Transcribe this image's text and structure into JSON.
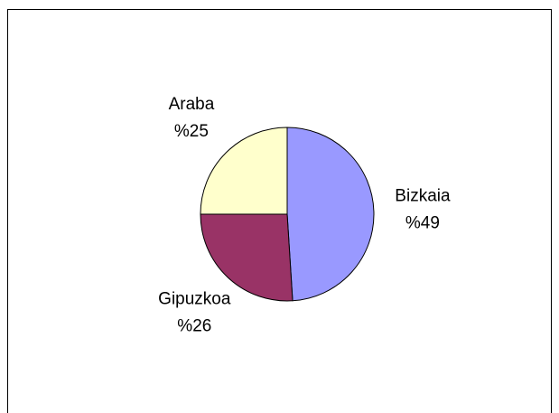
{
  "chart_data": {
    "type": "pie",
    "categories": [
      "Bizkaia",
      "Gipuzkoa",
      "Araba"
    ],
    "values": [
      49,
      26,
      25
    ],
    "value_labels": [
      "%49",
      "%26",
      "%25"
    ],
    "colors": [
      "#9999ff",
      "#993366",
      "#ffffcc"
    ]
  }
}
